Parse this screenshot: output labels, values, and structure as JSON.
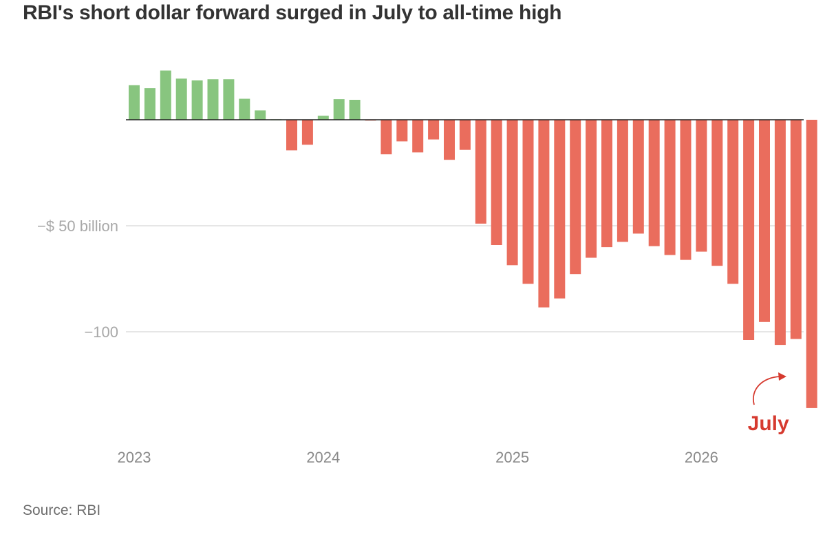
{
  "title": "RBI's short dollar forward surged in July to all-time high",
  "source": "Source: RBI",
  "colors": {
    "positive": "#88c57f",
    "negative": "#ea6d5d",
    "annotation": "#d63a2f",
    "zero_line": "#222222",
    "grid": "#d6d6d6"
  },
  "chart_data": {
    "type": "bar",
    "title": "RBI's short dollar forward surged in July to all-time high",
    "xlabel": "",
    "ylabel": "",
    "unit": "$ billion",
    "ylim": [
      -155,
      27
    ],
    "grid": true,
    "x_ticks": [
      "2023",
      "2024",
      "2025",
      "2026"
    ],
    "y_ticks": [
      {
        "value": -50,
        "label": "−$ 50 billion"
      },
      {
        "value": -100,
        "label": "−100"
      }
    ],
    "annotation": {
      "text": "July"
    },
    "values": [
      16.3,
      14.9,
      23.2,
      19.4,
      18.6,
      19.1,
      19.1,
      9.9,
      4.4,
      0,
      -14.4,
      -11.8,
      1.9,
      9.7,
      9.4,
      -0.4,
      -16.3,
      -10.2,
      -15.4,
      -9.3,
      -18.9,
      -14.2,
      -49.0,
      -59.1,
      -68.6,
      -77.4,
      -88.5,
      -84.3,
      -72.8,
      -65.1,
      -60.1,
      -57.6,
      -53.7,
      -59.6,
      -63.8,
      -66.1,
      -62.2,
      -68.9,
      -77.4,
      -103.9,
      -95.4,
      -106.2,
      -103.4,
      -136.0
    ],
    "first_month": "2023-01"
  }
}
